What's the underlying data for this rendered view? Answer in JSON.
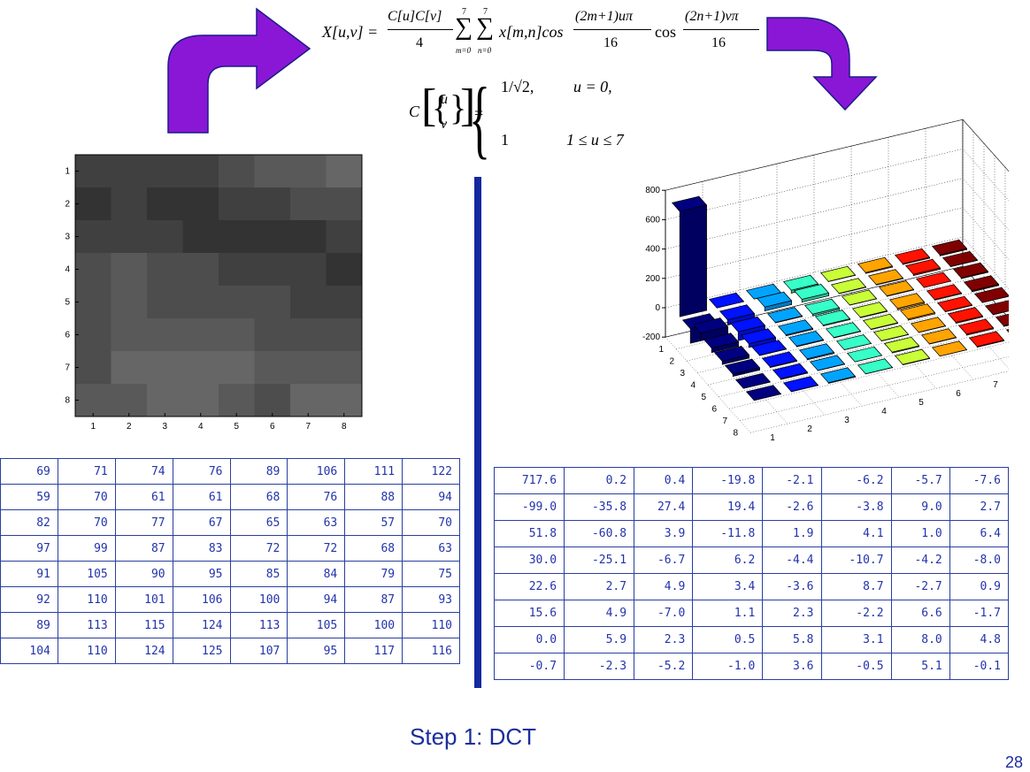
{
  "formula_top": {
    "lhs": "X[u,v] =",
    "frac_num": "C[u]C[v]",
    "frac_den": "4",
    "sum_upper_1": "7",
    "sum_upper_2": "7",
    "sum_lower_1": "m=0",
    "sum_lower_2": "n=0",
    "sum_body": "x[m,n]cos",
    "cos1_num": "(2m+1)uπ",
    "cos1_den": "16",
    "cos_word": "cos",
    "cos2_num": "(2n+1)vπ",
    "cos2_den": "16"
  },
  "formula_c": {
    "lhs_c": "C",
    "lhs_u": "u",
    "lhs_v": "v",
    "equals": "=",
    "case1_value": "1/√2,",
    "case1_cond": "u = 0,",
    "case2_value": "1",
    "case2_cond": "1 ≤ u ≤ 7"
  },
  "image_block": {
    "grid": [
      [
        69,
        71,
        74,
        76,
        89,
        106,
        111,
        122
      ],
      [
        59,
        70,
        61,
        61,
        68,
        76,
        88,
        94
      ],
      [
        82,
        70,
        77,
        67,
        65,
        63,
        57,
        70
      ],
      [
        97,
        99,
        87,
        83,
        72,
        72,
        68,
        63
      ],
      [
        91,
        105,
        90,
        95,
        85,
        84,
        79,
        75
      ],
      [
        92,
        110,
        101,
        106,
        100,
        94,
        87,
        93
      ],
      [
        89,
        113,
        115,
        124,
        113,
        105,
        100,
        110
      ],
      [
        104,
        110,
        124,
        125,
        107,
        95,
        117,
        116
      ]
    ],
    "row_labels": [
      "1",
      "2",
      "3",
      "4",
      "5",
      "6",
      "7",
      "8"
    ],
    "col_labels": [
      "1",
      "2",
      "3",
      "4",
      "5",
      "6",
      "7",
      "8"
    ]
  },
  "chart_data": {
    "type": "bar3d",
    "z_ticks": [
      "800",
      "600",
      "400",
      "200",
      "0",
      "-200"
    ],
    "x_ticks": [
      "1",
      "2",
      "3",
      "4",
      "5",
      "6",
      "7",
      "8"
    ],
    "y_ticks": [
      "1",
      "2",
      "3",
      "4",
      "5",
      "6",
      "7",
      "8"
    ],
    "zlim": [
      -200,
      800
    ]
  },
  "pixel_table": [
    [
      "69",
      "71",
      "74",
      "76",
      "89",
      "106",
      "111",
      "122"
    ],
    [
      "59",
      "70",
      "61",
      "61",
      "68",
      "76",
      "88",
      "94"
    ],
    [
      "82",
      "70",
      "77",
      "67",
      "65",
      "63",
      "57",
      "70"
    ],
    [
      "97",
      "99",
      "87",
      "83",
      "72",
      "72",
      "68",
      "63"
    ],
    [
      "91",
      "105",
      "90",
      "95",
      "85",
      "84",
      "79",
      "75"
    ],
    [
      "92",
      "110",
      "101",
      "106",
      "100",
      "94",
      "87",
      "93"
    ],
    [
      "89",
      "113",
      "115",
      "124",
      "113",
      "105",
      "100",
      "110"
    ],
    [
      "104",
      "110",
      "124",
      "125",
      "107",
      "95",
      "117",
      "116"
    ]
  ],
  "dct_table": [
    [
      "717.6",
      "0.2",
      "0.4",
      "-19.8",
      "-2.1",
      "-6.2",
      "-5.7",
      "-7.6"
    ],
    [
      "-99.0",
      "-35.8",
      "27.4",
      "19.4",
      "-2.6",
      "-3.8",
      "9.0",
      "2.7"
    ],
    [
      "51.8",
      "-60.8",
      "3.9",
      "-11.8",
      "1.9",
      "4.1",
      "1.0",
      "6.4"
    ],
    [
      "30.0",
      "-25.1",
      "-6.7",
      "6.2",
      "-4.4",
      "-10.7",
      "-4.2",
      "-8.0"
    ],
    [
      "22.6",
      "2.7",
      "4.9",
      "3.4",
      "-3.6",
      "8.7",
      "-2.7",
      "0.9"
    ],
    [
      "15.6",
      "4.9",
      "-7.0",
      "1.1",
      "2.3",
      "-2.2",
      "6.6",
      "-1.7"
    ],
    [
      "0.0",
      "5.9",
      "2.3",
      "0.5",
      "5.8",
      "3.1",
      "8.0",
      "4.8"
    ],
    [
      "-0.7",
      "-2.3",
      "-5.2",
      "-1.0",
      "3.6",
      "-0.5",
      "5.1",
      "-0.1"
    ]
  ],
  "caption": "Step 1: DCT",
  "page_number": "28",
  "colors": {
    "arrow": "#8a17d6",
    "arrow_stroke": "#1b1b8a",
    "table_border": "#2a3f9e",
    "table_text": "#2233aa",
    "divider": "#1428a0",
    "caption": "#1a2d9c"
  }
}
